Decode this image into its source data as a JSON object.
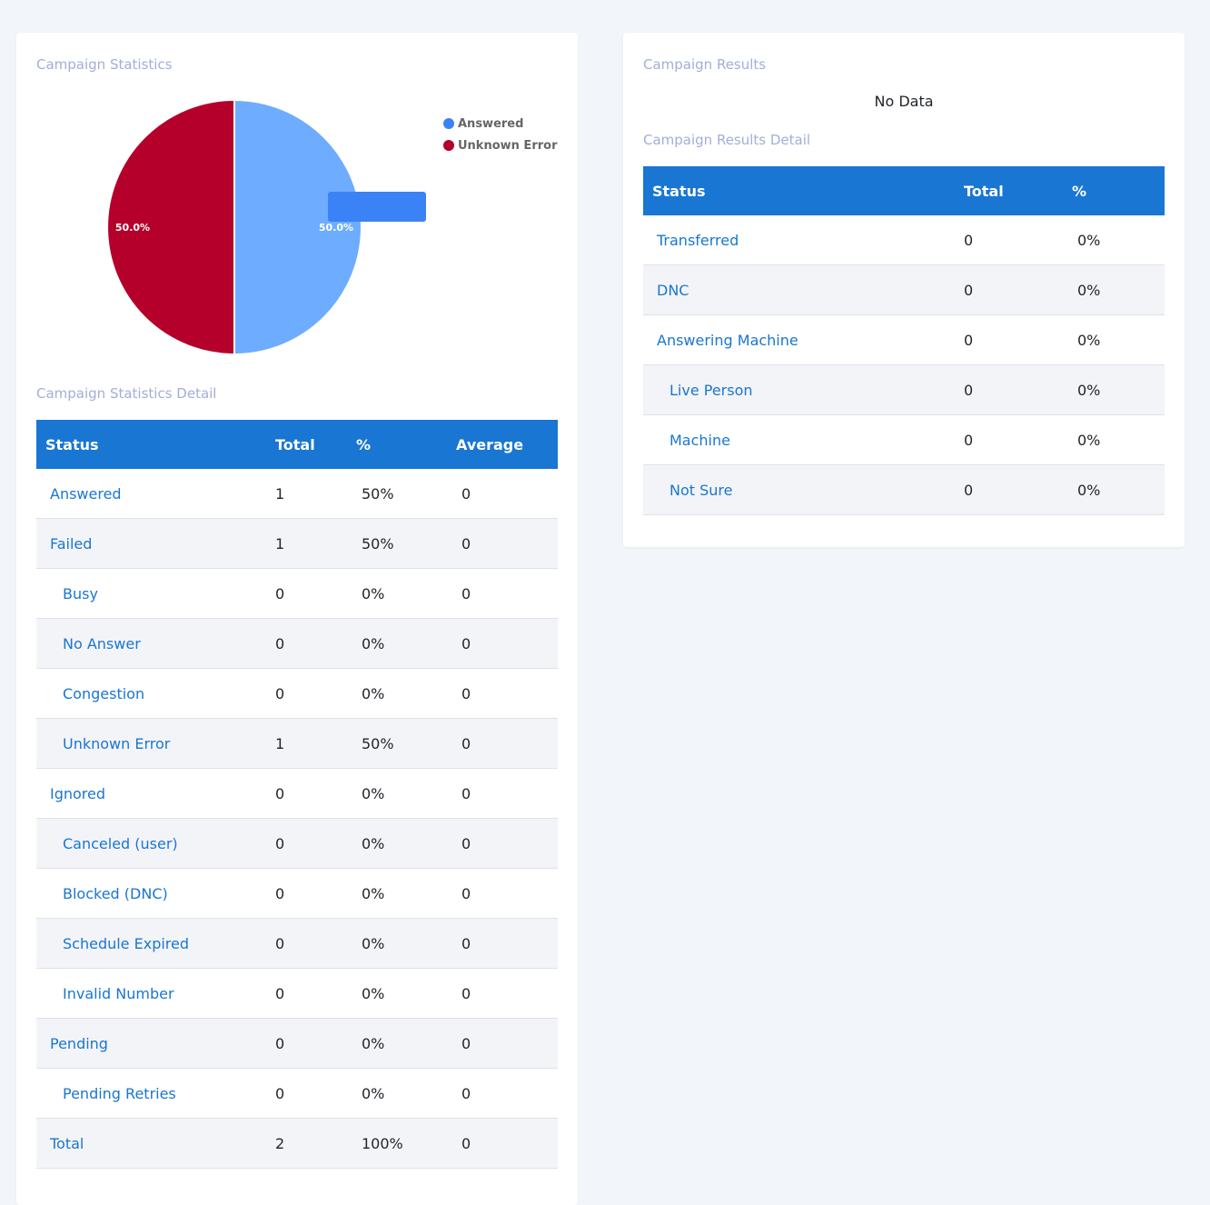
{
  "stats_panel": {
    "title": "Campaign Statistics",
    "detail_title": "Campaign Statistics Detail",
    "columns": [
      "Status",
      "Total",
      "%",
      "Average"
    ],
    "rows": [
      {
        "status": "Answered",
        "total": "1",
        "pct": "50%",
        "avg": "0",
        "indent": false
      },
      {
        "status": "Failed",
        "total": "1",
        "pct": "50%",
        "avg": "0",
        "indent": false
      },
      {
        "status": "Busy",
        "total": "0",
        "pct": "0%",
        "avg": "0",
        "indent": true
      },
      {
        "status": "No Answer",
        "total": "0",
        "pct": "0%",
        "avg": "0",
        "indent": true
      },
      {
        "status": "Congestion",
        "total": "0",
        "pct": "0%",
        "avg": "0",
        "indent": true
      },
      {
        "status": "Unknown Error",
        "total": "1",
        "pct": "50%",
        "avg": "0",
        "indent": true
      },
      {
        "status": "Ignored",
        "total": "0",
        "pct": "0%",
        "avg": "0",
        "indent": false
      },
      {
        "status": "Canceled (user)",
        "total": "0",
        "pct": "0%",
        "avg": "0",
        "indent": true
      },
      {
        "status": "Blocked (DNC)",
        "total": "0",
        "pct": "0%",
        "avg": "0",
        "indent": true
      },
      {
        "status": "Schedule Expired",
        "total": "0",
        "pct": "0%",
        "avg": "0",
        "indent": true
      },
      {
        "status": "Invalid Number",
        "total": "0",
        "pct": "0%",
        "avg": "0",
        "indent": true
      },
      {
        "status": "Pending",
        "total": "0",
        "pct": "0%",
        "avg": "0",
        "indent": false
      },
      {
        "status": "Pending Retries",
        "total": "0",
        "pct": "0%",
        "avg": "0",
        "indent": true
      },
      {
        "status": "Total",
        "total": "2",
        "pct": "100%",
        "avg": "0",
        "indent": false
      }
    ]
  },
  "results_panel": {
    "title": "Campaign Results",
    "no_data": "No Data",
    "detail_title": "Campaign Results Detail",
    "columns": [
      "Status",
      "Total",
      "%"
    ],
    "rows": [
      {
        "status": "Transferred",
        "total": "0",
        "pct": "0%",
        "indent": false
      },
      {
        "status": "DNC",
        "total": "0",
        "pct": "0%",
        "indent": false
      },
      {
        "status": "Answering Machine",
        "total": "0",
        "pct": "0%",
        "indent": false
      },
      {
        "status": "Live Person",
        "total": "0",
        "pct": "0%",
        "indent": true
      },
      {
        "status": "Machine",
        "total": "0",
        "pct": "0%",
        "indent": true
      },
      {
        "status": "Not Sure",
        "total": "0",
        "pct": "0%",
        "indent": true
      }
    ]
  },
  "chart_data": {
    "type": "pie",
    "title": "Campaign Statistics",
    "series": [
      {
        "name": "Answered",
        "value": 50.0,
        "label": "50.0%",
        "color": "#6eacff",
        "legend_color": "#3b82f6"
      },
      {
        "name": "Unknown Error",
        "value": 50.0,
        "label": "50.0%",
        "color": "#b5002b",
        "legend_color": "#b5002b"
      }
    ],
    "legend_position": "top-right"
  },
  "colors": {
    "header_blue": "#1976d2",
    "link_blue": "#1976d2",
    "section_title": "#a3aed8",
    "tooltip_blue": "#3b82f6"
  }
}
